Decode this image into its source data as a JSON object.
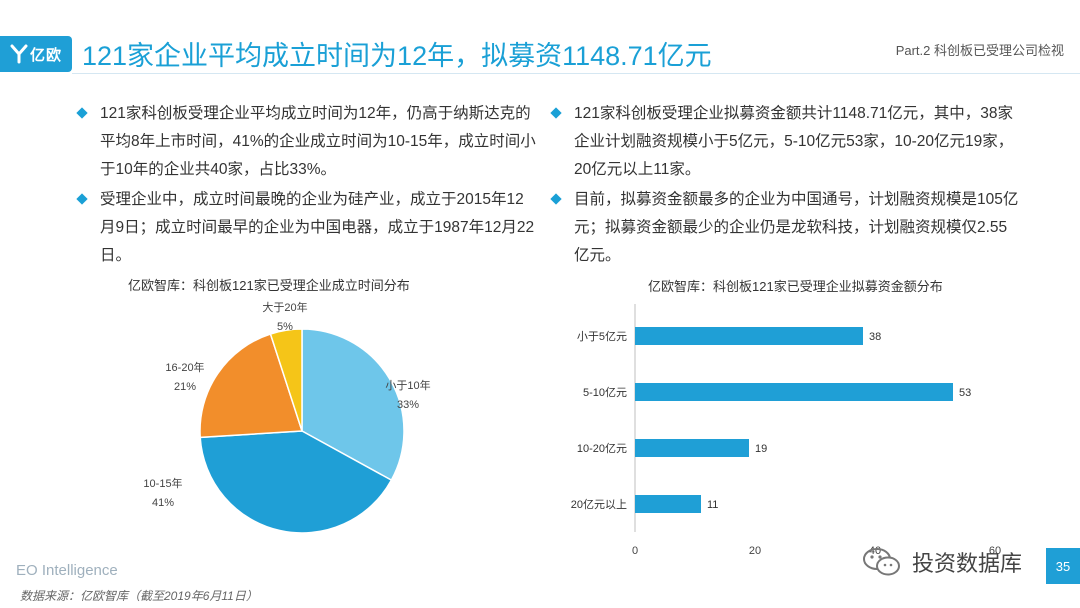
{
  "header": {
    "logo_text": "亿欧",
    "title": "121家企业平均成立时间为12年，拟募资1148.71亿元",
    "part_label": "Part.2 科创板已受理公司检视"
  },
  "left_bullets": [
    "121家科创板受理企业平均成立时间为12年，仍高于纳斯达克的平均8年上市时间，41%的企业成立时间为10-15年，成立时间小于10年的企业共40家，占比33%。",
    "受理企业中，成立时间最晚的企业为硅产业，成立于2015年12月9日；成立时间最早的企业为中国电器，成立于1987年12月22日。"
  ],
  "right_bullets": [
    "121家科创板受理企业拟募资金额共计1148.71亿元，其中，38家企业计划融资规模小于5亿元，5-10亿元53家，10-20亿元19家，20亿元以上11家。",
    "目前，拟募资金额最多的企业为中国通号，计划融资规模是105亿元；拟募资金额最少的企业仍是龙软科技，计划融资规模仅2.55亿元。"
  ],
  "chart_data": [
    {
      "type": "pie",
      "title": "亿欧智库：科创板121家已受理企业成立时间分布",
      "slices": [
        {
          "label": "小于10年",
          "value": 33,
          "value_label": "33%",
          "color": "#6ec6ea"
        },
        {
          "label": "10-15年",
          "value": 41,
          "value_label": "41%",
          "color": "#1f9fd6"
        },
        {
          "label": "16-20年",
          "value": 21,
          "value_label": "21%",
          "color": "#f28e2b"
        },
        {
          "label": "大于20年",
          "value": 5,
          "value_label": "5%",
          "color": "#f5c518"
        }
      ]
    },
    {
      "type": "bar",
      "orientation": "horizontal",
      "title": "亿欧智库：科创板121家已受理企业拟募资金额分布",
      "categories": [
        "小于5亿元",
        "5-10亿元",
        "10-20亿元",
        "20亿元以上"
      ],
      "values": [
        38,
        53,
        19,
        11
      ],
      "xlim": [
        0,
        60
      ],
      "xticks": [
        "0",
        "20",
        "40",
        "60"
      ],
      "color": "#1f9fd6"
    }
  ],
  "footer": {
    "brand": "EO Intelligence",
    "source": "数据来源：亿欧智库（截至2019年6月11日）",
    "watermark": "投资数据库",
    "page_number": "35"
  }
}
